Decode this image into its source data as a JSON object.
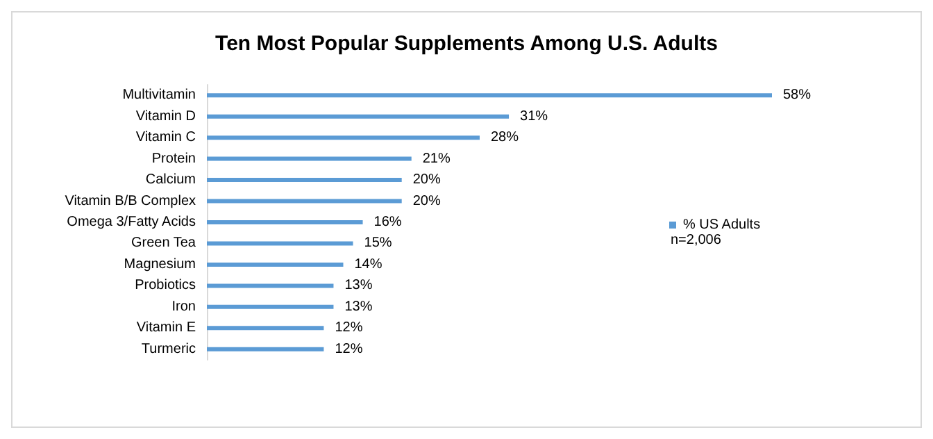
{
  "chart_data": {
    "type": "bar",
    "orientation": "horizontal",
    "title": "Ten Most Popular Supplements Among U.S. Adults",
    "categories": [
      "Multivitamin",
      "Vitamin D",
      "Vitamin C",
      "Protein",
      "Calcium",
      "Vitamin B/B Complex",
      "Omega 3/Fatty Acids",
      "Green Tea",
      "Magnesium",
      "Probiotics",
      "Iron",
      "Vitamin E",
      "Turmeric"
    ],
    "series": [
      {
        "name": "% US Adults",
        "color": "#5b9bd5",
        "values": [
          58,
          31,
          28,
          21,
          20,
          20,
          16,
          15,
          14,
          13,
          13,
          12,
          12
        ],
        "value_labels": [
          "58%",
          "31%",
          "28%",
          "21%",
          "20%",
          "20%",
          "16%",
          "15%",
          "14%",
          "13%",
          "13%",
          "12%",
          "12%"
        ]
      }
    ],
    "legend": "right",
    "annotations": [
      "n=2,006"
    ]
  }
}
